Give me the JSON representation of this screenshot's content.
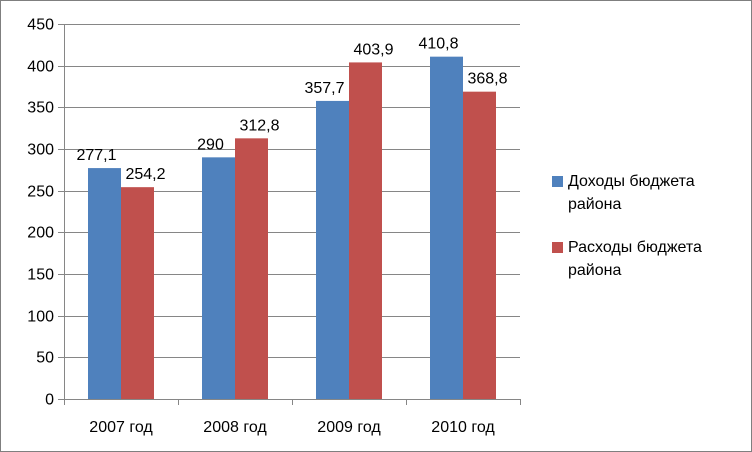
{
  "chart_data": {
    "type": "bar",
    "categories": [
      "2007 год",
      "2008 год",
      "2009 год",
      "2010 год"
    ],
    "series": [
      {
        "name": "Доходы бюджета района",
        "color": "#4f81bd",
        "values": [
          277.1,
          290,
          357.7,
          410.8
        ],
        "labels": [
          "277,1",
          "290",
          "357,7",
          "410,8"
        ]
      },
      {
        "name": "Расходы бюджета района",
        "color": "#c0504d",
        "values": [
          254.2,
          312.8,
          403.9,
          368.8
        ],
        "labels": [
          "254,2",
          "312,8",
          "403,9",
          "368,8"
        ]
      }
    ],
    "yticks": [
      0,
      50,
      100,
      150,
      200,
      250,
      300,
      350,
      400,
      450
    ],
    "ylim": [
      0,
      450
    ],
    "grid": true,
    "legend_position": "right"
  }
}
